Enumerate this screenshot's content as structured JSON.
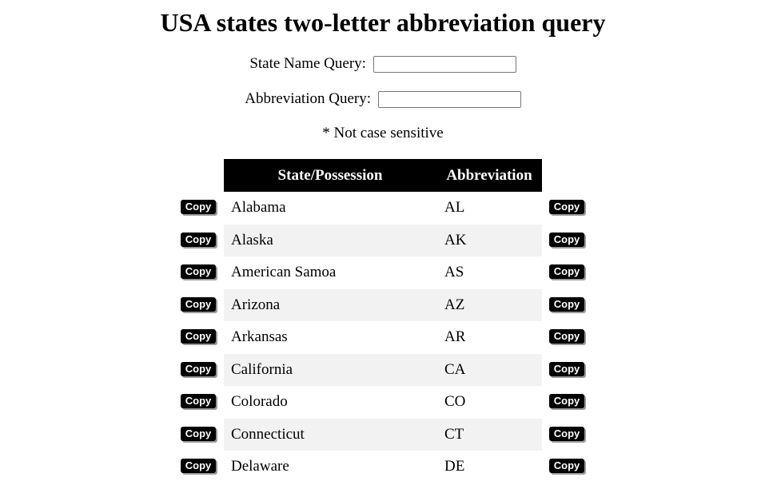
{
  "page": {
    "title": "USA states two-letter abbreviation query"
  },
  "queries": {
    "state_label": "State Name Query:",
    "state_value": "",
    "abbr_label": "Abbreviation Query:",
    "abbr_value": "",
    "note": "* Not case sensitive"
  },
  "table": {
    "headers": {
      "state": "State/Possession",
      "abbreviation": "Abbreviation"
    },
    "copy_label": "Copy",
    "rows": [
      {
        "state": "Alabama",
        "abbr": "AL"
      },
      {
        "state": "Alaska",
        "abbr": "AK"
      },
      {
        "state": "American Samoa",
        "abbr": "AS"
      },
      {
        "state": "Arizona",
        "abbr": "AZ"
      },
      {
        "state": "Arkansas",
        "abbr": "AR"
      },
      {
        "state": "California",
        "abbr": "CA"
      },
      {
        "state": "Colorado",
        "abbr": "CO"
      },
      {
        "state": "Connecticut",
        "abbr": "CT"
      },
      {
        "state": "Delaware",
        "abbr": "DE"
      }
    ]
  }
}
